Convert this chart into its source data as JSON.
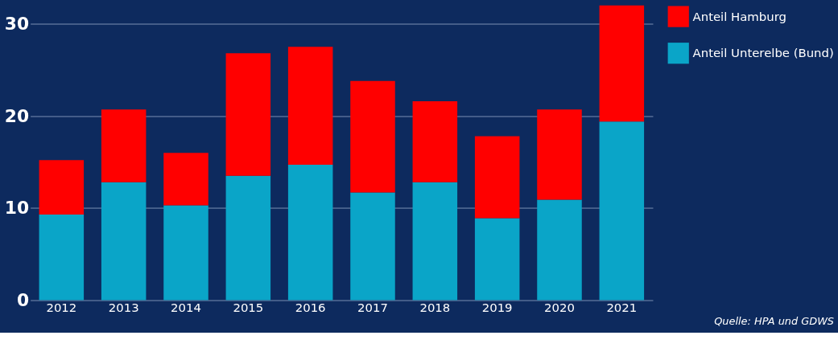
{
  "chart_data": {
    "type": "bar",
    "stacked": true,
    "categories": [
      "2012",
      "2013",
      "2014",
      "2015",
      "2016",
      "2017",
      "2018",
      "2019",
      "2020",
      "2021"
    ],
    "series": [
      {
        "name": "Anteil Unterelbe (Bund)",
        "color": "#0aa5c8",
        "values": [
          9.3,
          12.8,
          10.3,
          13.5,
          14.7,
          11.7,
          12.8,
          8.9,
          10.9,
          19.4
        ]
      },
      {
        "name": "Anteil Hamburg",
        "color": "#ff0000",
        "values": [
          5.9,
          7.9,
          5.7,
          13.3,
          12.8,
          12.1,
          8.8,
          8.9,
          9.8,
          12.6
        ]
      }
    ],
    "ylim": [
      0,
      32
    ],
    "yticks": [
      0,
      10,
      20,
      30
    ],
    "grid": "y",
    "legend": "right",
    "annotations": [
      "Quelle: HPA und GDWS"
    ]
  }
}
